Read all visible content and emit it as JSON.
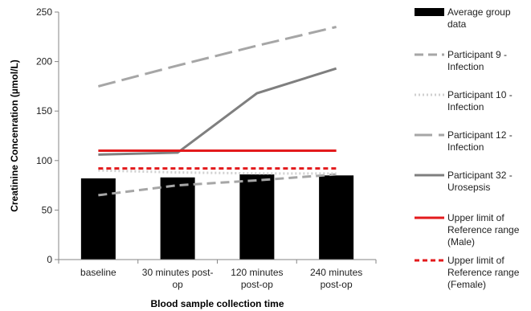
{
  "chart_data": {
    "type": "bar",
    "xlabel": "Blood sample collection time",
    "ylabel": "Creatinine Concenration (µmol/L)",
    "ylim": [
      0,
      250
    ],
    "yticks": [
      "0",
      "50",
      "100",
      "150",
      "200",
      "250"
    ],
    "categories": [
      [
        "baseline"
      ],
      [
        "30 minutes post-",
        "op"
      ],
      [
        "120 minutes",
        "post-op"
      ],
      [
        "240 minutes",
        "post-op"
      ]
    ],
    "bars": {
      "name": [
        "Average group",
        "data"
      ],
      "values": [
        82,
        83,
        86,
        85
      ],
      "color": "#000000"
    },
    "lines": [
      {
        "name": [
          "Participant 9 -",
          "Infection"
        ],
        "values": [
          65,
          75,
          80,
          86
        ],
        "color": "#a6a6a6",
        "style": "dashed"
      },
      {
        "name": [
          "Participant 10 -",
          "Infection"
        ],
        "values": [
          90,
          88,
          87,
          87
        ],
        "color": "#d0d0d0",
        "style": "dotted"
      },
      {
        "name": [
          "Participant 12 -",
          "Infection"
        ],
        "values": [
          175,
          196,
          216,
          235
        ],
        "color": "#a6a6a6",
        "style": "longdash"
      },
      {
        "name": [
          "Participant 32 -",
          "Urosepsis"
        ],
        "values": [
          106,
          108,
          168,
          193
        ],
        "color": "#7f7f7f",
        "style": "solid"
      },
      {
        "name": [
          "Upper limit of",
          "Reference range",
          "(Male)"
        ],
        "values": [
          110,
          110,
          110,
          110
        ],
        "color": "#e31a1c",
        "style": "solid"
      },
      {
        "name": [
          "Upper limit of",
          "Reference range",
          "(Female)"
        ],
        "values": [
          92,
          92,
          92,
          92
        ],
        "color": "#e31a1c",
        "style": "reddash"
      }
    ],
    "legend": "right"
  }
}
